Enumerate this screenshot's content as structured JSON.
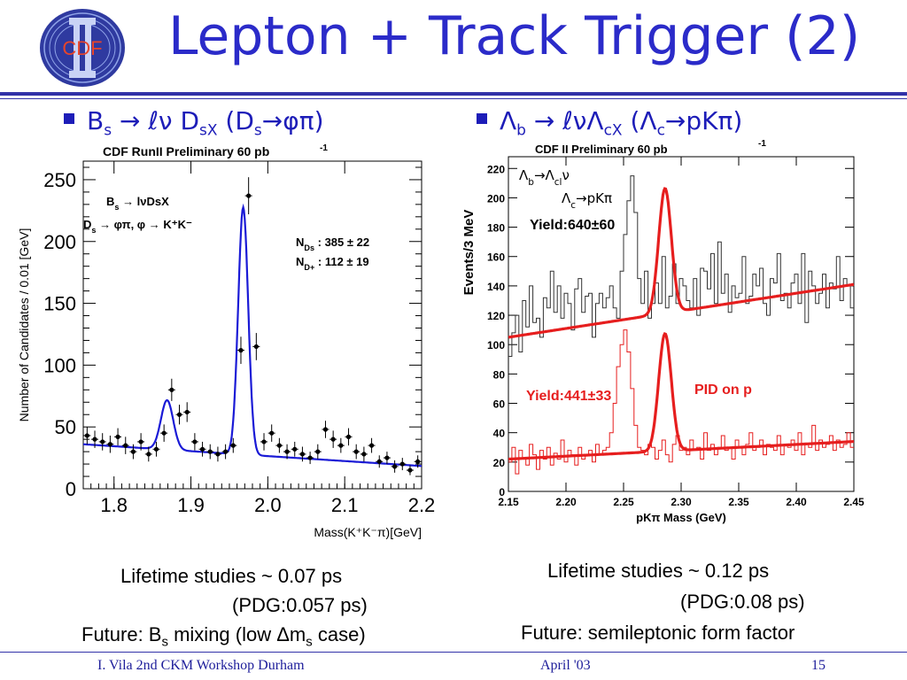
{
  "slide": {
    "title": "Lepton + Track Trigger (2)",
    "logo_text": "CDF"
  },
  "left": {
    "bullet": "B_s → ℓν D_sX (D_s→φπ)",
    "captions": [
      "Lifetime studies ~ 0.07 ps",
      "(PDG:0.057 ps)",
      "Future: B_s mixing (low Δm_s case)"
    ]
  },
  "right": {
    "bullet": "Λ_b → ℓνΛ_cX (Λ_c→pKπ)",
    "captions": [
      "Lifetime studies ~ 0.12 ps",
      "(PDG:0.08 ps)",
      "Future: semileptonic form factor"
    ]
  },
  "footer": {
    "author": "I. Vila  2nd CKM Workshop  Durham",
    "date": "April '03",
    "page": "15"
  },
  "chart_data": [
    {
      "type": "scatter",
      "title": "CDF RunII Preliminary   60 pb",
      "title_sup": "-1",
      "xlabel": "Mass(K⁺K⁻π)[GeV]",
      "ylabel": "Number of Candidates / 0.01 [GeV]",
      "xlim": [
        1.76,
        2.2
      ],
      "ylim": [
        0,
        265
      ],
      "xticks": [
        "1.8",
        "1.9",
        "2.0",
        "2.1",
        "2.2"
      ],
      "yticks": [
        "0",
        "50",
        "100",
        "150",
        "200",
        "250"
      ],
      "annotations": [
        "B_s → lνDsX",
        "D_s → φπ, φ → K⁺K⁻",
        "N_Ds : 385 ± 22",
        "N_D+ : 112 ± 19"
      ],
      "fit_color": "#1a1ad6",
      "x": [
        1.765,
        1.775,
        1.785,
        1.795,
        1.805,
        1.815,
        1.825,
        1.835,
        1.845,
        1.855,
        1.865,
        1.875,
        1.885,
        1.895,
        1.905,
        1.915,
        1.925,
        1.935,
        1.945,
        1.955,
        1.965,
        1.975,
        1.985,
        1.995,
        2.005,
        2.015,
        2.025,
        2.035,
        2.045,
        2.055,
        2.065,
        2.075,
        2.085,
        2.095,
        2.105,
        2.115,
        2.125,
        2.135,
        2.145,
        2.155,
        2.165,
        2.175,
        2.185,
        2.195
      ],
      "y": [
        43,
        40,
        38,
        36,
        42,
        35,
        30,
        38,
        28,
        32,
        45,
        80,
        60,
        62,
        38,
        32,
        30,
        28,
        30,
        35,
        112,
        237,
        115,
        38,
        45,
        35,
        30,
        32,
        28,
        25,
        30,
        48,
        40,
        35,
        42,
        30,
        28,
        35,
        22,
        25,
        18,
        20,
        15,
        22
      ],
      "errors": [
        7,
        7,
        7,
        7,
        7,
        7,
        6,
        7,
        6,
        6,
        7,
        9,
        8,
        8,
        7,
        6,
        6,
        6,
        6,
        6,
        11,
        15,
        11,
        7,
        7,
        6,
        6,
        6,
        6,
        5,
        6,
        7,
        7,
        6,
        7,
        6,
        6,
        6,
        5,
        5,
        5,
        5,
        4,
        5
      ],
      "fit": {
        "background": {
          "a": 36,
          "b": -40,
          "x0": 1.76
        },
        "peaks": [
          {
            "mean": 1.869,
            "amp": 40,
            "sigma": 0.008
          },
          {
            "mean": 1.968,
            "amp": 200,
            "sigma": 0.0065
          }
        ]
      }
    },
    {
      "type": "histogram",
      "title": "CDF II Preliminary          60 pb",
      "title_sup": "-1",
      "xlabel": "pKπ Mass (GeV)",
      "ylabel": "Events/3 MeV",
      "xlim": [
        2.15,
        2.45
      ],
      "ylim": [
        0,
        228
      ],
      "xticks": [
        "2.15",
        "2.20",
        "2.25",
        "2.30",
        "2.35",
        "2.40",
        "2.45"
      ],
      "yticks": [
        "0",
        "20",
        "40",
        "60",
        "80",
        "100",
        "120",
        "140",
        "160",
        "180",
        "200",
        "220"
      ],
      "annotations": [
        "Λ_b→Λ_clν",
        "Λ_c→pKπ",
        "Yield:640±60",
        "Yield:441±33",
        "PID on p"
      ],
      "series": [
        {
          "color": "#333333",
          "fit_color": "#e61e1e",
          "values": [
            92,
            108,
            120,
            95,
            130,
            112,
            140,
            115,
            118,
            105,
            132,
            125,
            150,
            122,
            140,
            118,
            135,
            128,
            110,
            138,
            145,
            122,
            133,
            135,
            105,
            128,
            135,
            125,
            132,
            140,
            125,
            118,
            150,
            175,
            198,
            215,
            190,
            145,
            128,
            150,
            118,
            128,
            142,
            128,
            160,
            125,
            133,
            155,
            128,
            145,
            140,
            130,
            125,
            145,
            120,
            152,
            150,
            138,
            162,
            128,
            170,
            135,
            148,
            122,
            140,
            132,
            135,
            160,
            128,
            133,
            148,
            140,
            152,
            128,
            120,
            145,
            142,
            162,
            130,
            135,
            125,
            142,
            148,
            128,
            162,
            115,
            150,
            140,
            128,
            135,
            148,
            125,
            142,
            138,
            160,
            130,
            145,
            140,
            125
          ],
          "fit": {
            "background": {
              "a": 105,
              "b": 120,
              "x0": 2.15
            },
            "peaks": [
              {
                "mean": 2.286,
                "amp": 85,
                "sigma": 0.0055
              }
            ]
          }
        },
        {
          "color": "#e61e1e",
          "fit_color": "#e61e1e",
          "values": [
            20,
            30,
            12,
            28,
            22,
            18,
            32,
            25,
            15,
            28,
            22,
            30,
            18,
            26,
            22,
            35,
            20,
            28,
            25,
            18,
            30,
            22,
            25,
            28,
            20,
            32,
            25,
            28,
            30,
            40,
            60,
            85,
            100,
            110,
            95,
            70,
            45,
            30,
            28,
            25,
            32,
            30,
            22,
            28,
            35,
            25,
            20,
            32,
            38,
            28,
            30,
            25,
            35,
            28,
            30,
            22,
            40,
            28,
            32,
            25,
            30,
            38,
            28,
            30,
            22,
            35,
            30,
            25,
            32,
            40,
            28,
            30,
            35,
            25,
            32,
            30,
            28,
            38,
            25,
            32,
            30,
            35,
            28,
            40,
            25,
            32,
            30,
            45,
            28,
            35,
            30,
            32,
            38,
            28,
            35,
            30,
            32,
            40,
            30
          ],
          "fit": {
            "background": {
              "a": 22,
              "b": 40,
              "x0": 2.15
            },
            "peaks": [
              {
                "mean": 2.286,
                "amp": 80,
                "sigma": 0.0055
              }
            ]
          }
        }
      ]
    }
  ]
}
